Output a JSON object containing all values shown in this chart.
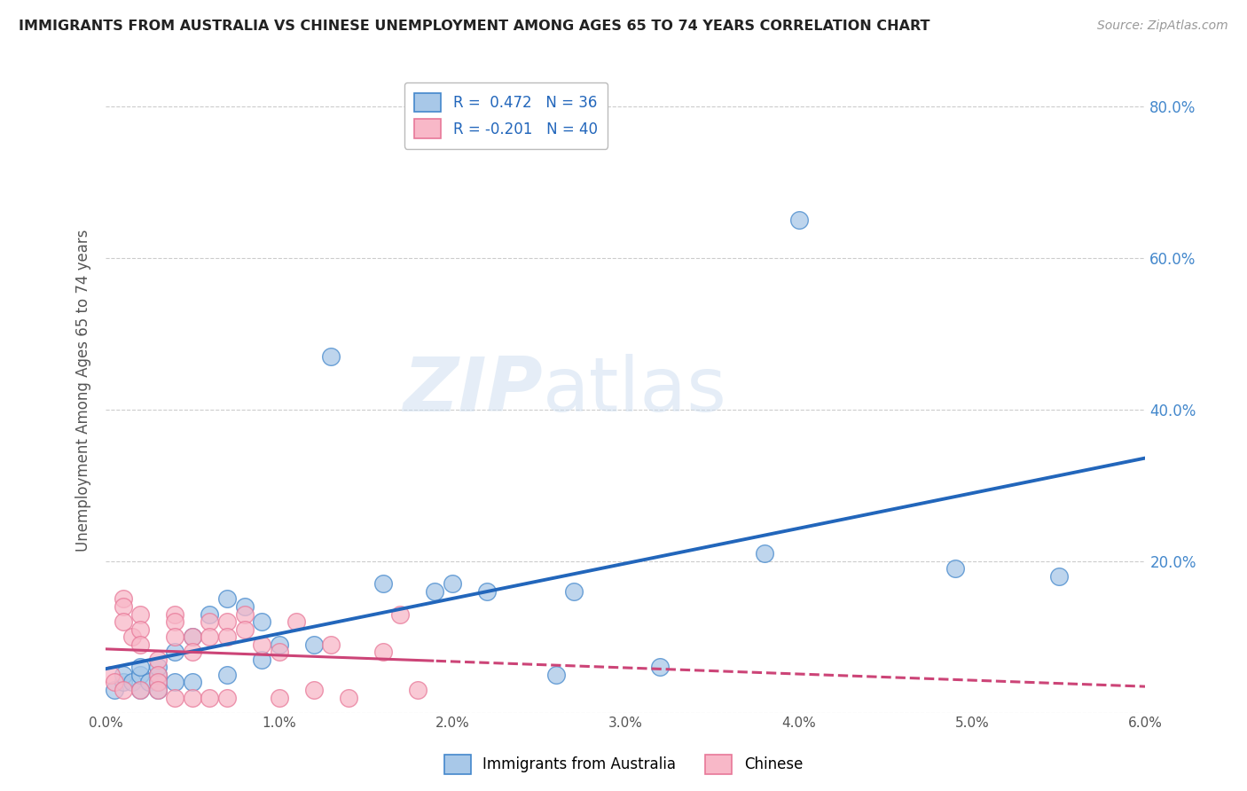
{
  "title": "IMMIGRANTS FROM AUSTRALIA VS CHINESE UNEMPLOYMENT AMONG AGES 65 TO 74 YEARS CORRELATION CHART",
  "source": "Source: ZipAtlas.com",
  "ylabel": "Unemployment Among Ages 65 to 74 years",
  "xlim": [
    0.0,
    0.06
  ],
  "ylim": [
    0.0,
    0.85
  ],
  "xticks": [
    0.0,
    0.01,
    0.02,
    0.03,
    0.04,
    0.05,
    0.06
  ],
  "xticklabels": [
    "0.0%",
    "1.0%",
    "2.0%",
    "3.0%",
    "4.0%",
    "5.0%",
    "6.0%"
  ],
  "yticks": [
    0.0,
    0.2,
    0.4,
    0.6,
    0.8
  ],
  "yticklabels": [
    "",
    "20.0%",
    "40.0%",
    "60.0%",
    "80.0%"
  ],
  "legend_blue_r": "0.472",
  "legend_blue_n": "36",
  "legend_pink_r": "-0.201",
  "legend_pink_n": "40",
  "legend_label_blue": "Immigrants from Australia",
  "legend_label_pink": "Chinese",
  "watermark_zip": "ZIP",
  "watermark_atlas": "atlas",
  "blue_scatter_x": [
    0.0005,
    0.001,
    0.001,
    0.0015,
    0.002,
    0.002,
    0.002,
    0.0025,
    0.003,
    0.003,
    0.003,
    0.003,
    0.004,
    0.004,
    0.005,
    0.005,
    0.006,
    0.007,
    0.007,
    0.008,
    0.009,
    0.009,
    0.01,
    0.012,
    0.013,
    0.016,
    0.019,
    0.02,
    0.022,
    0.026,
    0.027,
    0.032,
    0.038,
    0.04,
    0.049,
    0.055
  ],
  "blue_scatter_y": [
    0.03,
    0.04,
    0.05,
    0.04,
    0.03,
    0.05,
    0.06,
    0.04,
    0.03,
    0.04,
    0.05,
    0.06,
    0.04,
    0.08,
    0.04,
    0.1,
    0.13,
    0.05,
    0.15,
    0.14,
    0.07,
    0.12,
    0.09,
    0.09,
    0.47,
    0.17,
    0.16,
    0.17,
    0.16,
    0.05,
    0.16,
    0.06,
    0.21,
    0.65,
    0.19,
    0.18
  ],
  "pink_scatter_x": [
    0.0003,
    0.0005,
    0.001,
    0.001,
    0.001,
    0.001,
    0.0015,
    0.002,
    0.002,
    0.002,
    0.002,
    0.003,
    0.003,
    0.003,
    0.003,
    0.004,
    0.004,
    0.004,
    0.004,
    0.005,
    0.005,
    0.005,
    0.006,
    0.006,
    0.006,
    0.007,
    0.007,
    0.007,
    0.008,
    0.008,
    0.009,
    0.01,
    0.01,
    0.011,
    0.012,
    0.013,
    0.014,
    0.016,
    0.017,
    0.018
  ],
  "pink_scatter_y": [
    0.05,
    0.04,
    0.15,
    0.14,
    0.12,
    0.03,
    0.1,
    0.13,
    0.11,
    0.09,
    0.03,
    0.07,
    0.05,
    0.04,
    0.03,
    0.13,
    0.12,
    0.1,
    0.02,
    0.1,
    0.08,
    0.02,
    0.12,
    0.1,
    0.02,
    0.12,
    0.1,
    0.02,
    0.13,
    0.11,
    0.09,
    0.08,
    0.02,
    0.12,
    0.03,
    0.09,
    0.02,
    0.08,
    0.13,
    0.03
  ],
  "blue_color": "#a8c8e8",
  "blue_edge_color": "#4488cc",
  "blue_line_color": "#2266bb",
  "pink_color": "#f8b8c8",
  "pink_edge_color": "#e87898",
  "pink_line_color": "#cc4477",
  "background_color": "#ffffff",
  "grid_color": "#cccccc",
  "title_color": "#222222",
  "axis_label_color": "#555555",
  "tick_color_right": "#4488cc",
  "tick_color_left": "#555555"
}
